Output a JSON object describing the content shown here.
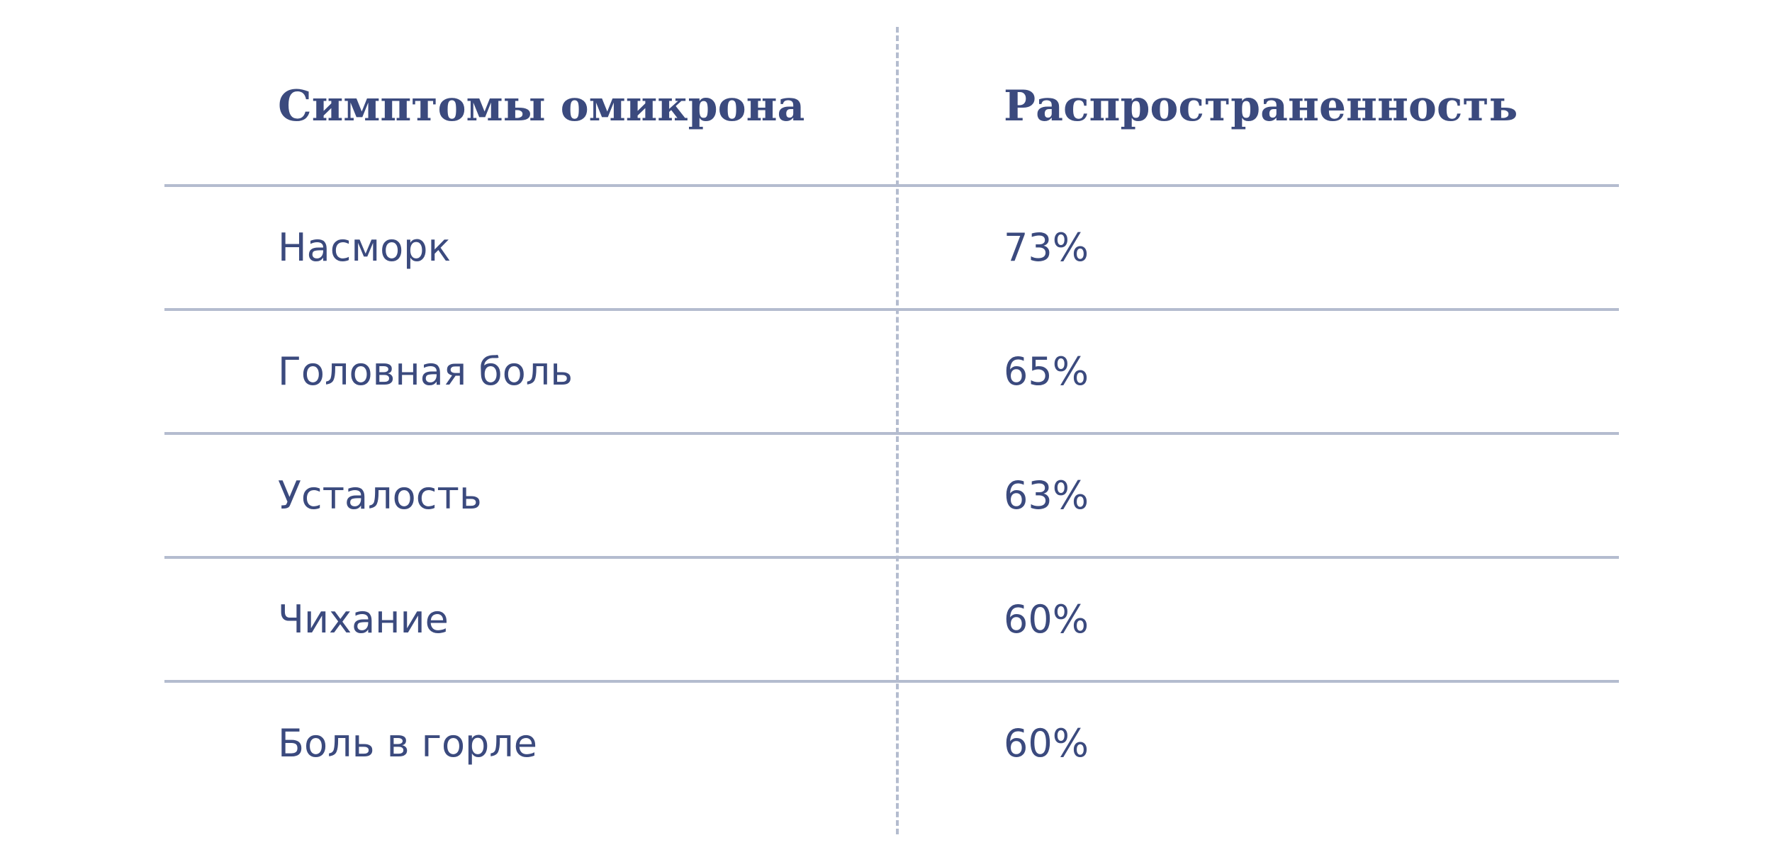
{
  "table": {
    "headers": {
      "symptom": "Симптомы омикрона",
      "prevalence": "Распространенность"
    },
    "rows": [
      {
        "symptom": "Насморк",
        "prevalence": "73%"
      },
      {
        "symptom": "Головная боль",
        "prevalence": "65%"
      },
      {
        "symptom": "Усталость",
        "prevalence": "63%"
      },
      {
        "symptom": "Чихание",
        "prevalence": "60%"
      },
      {
        "symptom": "Боль в горле",
        "prevalence": "60%"
      }
    ]
  },
  "colors": {
    "text": "#3b4a7e",
    "rule": "#b4bccf",
    "background": "#ffffff"
  }
}
